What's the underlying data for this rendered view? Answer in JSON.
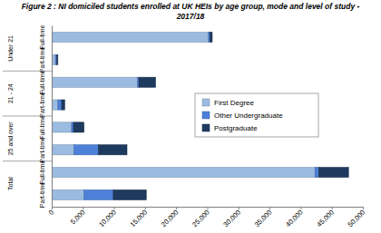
{
  "chart_data": {
    "type": "bar",
    "orientation": "horizontal",
    "stacked": true,
    "title": "Figure 2 : NI domiciled students enrolled at UK HEIs by age group, mode and level of study - 2017/18",
    "groups": [
      "Under 21",
      "21 - 24",
      "25 and over",
      "Total"
    ],
    "categories": [
      "Full-time",
      "Part-time",
      "Full-time",
      "Part-time",
      "Full-time",
      "Part-time",
      "Full-time",
      "Part-time"
    ],
    "series": [
      {
        "name": "First Degree",
        "color": "#9bbbe0",
        "values": [
          25200,
          600,
          13800,
          1000,
          3200,
          3600,
          42300,
          5200
        ]
      },
      {
        "name": "Other Undergraduate",
        "color": "#4d80d9",
        "values": [
          200,
          200,
          200,
          600,
          300,
          3900,
          600,
          4700
        ]
      },
      {
        "name": "Postgraduate",
        "color": "#1f3a5f",
        "values": [
          400,
          200,
          2700,
          500,
          1700,
          4600,
          4800,
          5300
        ]
      }
    ],
    "xlim": [
      0,
      50000
    ],
    "xticks": [
      0,
      {
        "value": 5000,
        "label": "5,000"
      },
      {
        "value": 10000,
        "label": "10,000"
      },
      {
        "value": 15000,
        "label": "15,000"
      },
      {
        "value": 20000,
        "label": "20,000"
      },
      {
        "value": 25000,
        "label": "25,000"
      },
      {
        "value": 30000,
        "label": "30,000"
      },
      {
        "value": 35000,
        "label": "35,000"
      },
      {
        "value": 40000,
        "label": "40,000"
      },
      {
        "value": 45000,
        "label": "45,000"
      },
      {
        "value": 50000,
        "label": "50,000"
      }
    ],
    "legend": "right"
  }
}
